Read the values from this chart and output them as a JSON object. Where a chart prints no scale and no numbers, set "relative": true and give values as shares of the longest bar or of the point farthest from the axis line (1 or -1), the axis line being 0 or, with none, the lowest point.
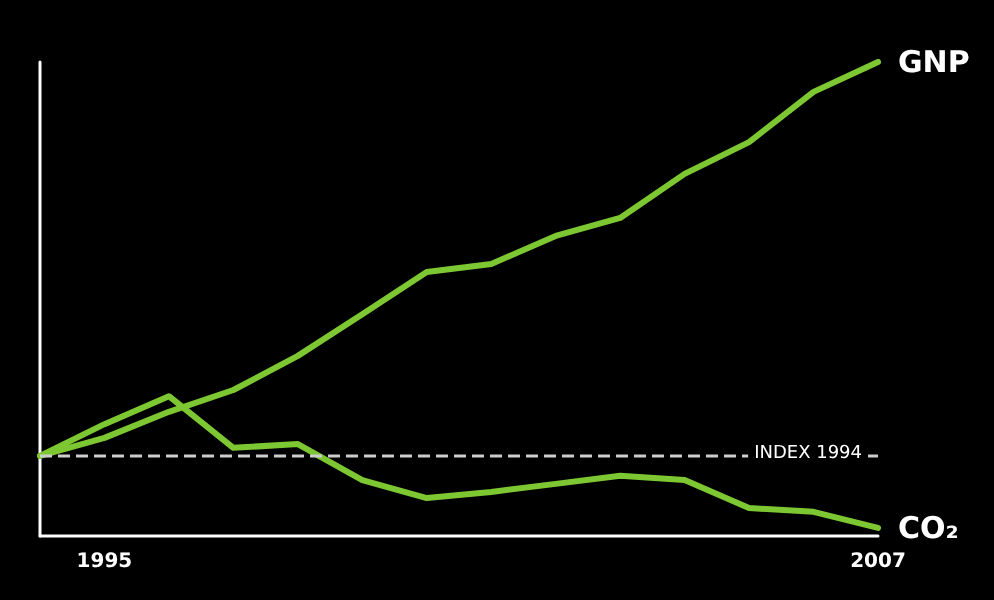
{
  "chart_data": {
    "type": "line",
    "relative": true,
    "categories": [
      null,
      "1995",
      null,
      null,
      null,
      null,
      null,
      null,
      null,
      null,
      null,
      null,
      null,
      "2007"
    ],
    "series": [
      {
        "name": "GNP",
        "color": "#7dc832",
        "values": [
          0.169,
          0.207,
          0.262,
          0.308,
          0.38,
          0.468,
          0.557,
          0.574,
          0.633,
          0.671,
          0.764,
          0.831,
          0.937,
          1
        ]
      },
      {
        "name": "CO₂",
        "color": "#7dc832",
        "values": [
          0.169,
          0.236,
          0.295,
          0.186,
          0.194,
          0.118,
          0.08,
          0.093,
          0.11,
          0.127,
          0.118,
          0.059,
          0.051,
          0.017
        ]
      }
    ],
    "ref_lines": [
      {
        "axis": "y",
        "value": 0.169,
        "label": "INDEX 1994",
        "color": "#cccccc",
        "line_style": "dashed"
      }
    ],
    "grid": false,
    "legend": false,
    "marker": "none",
    "line_style": "solid"
  }
}
